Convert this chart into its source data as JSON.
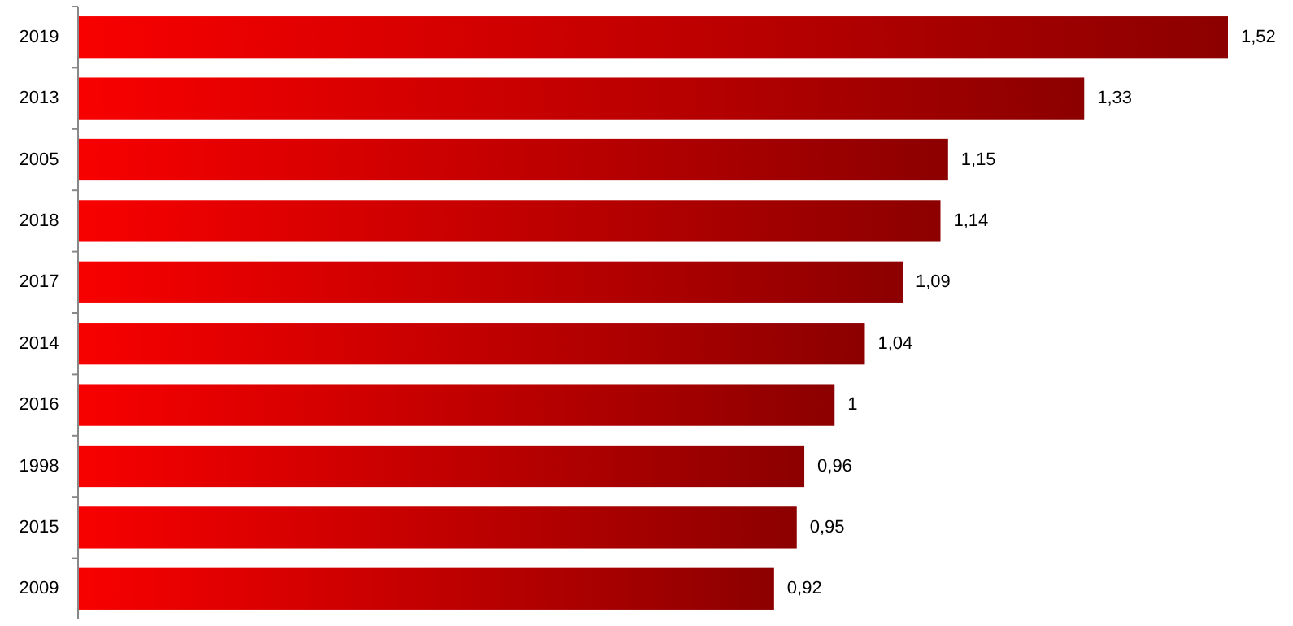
{
  "chart_data": {
    "type": "bar",
    "orientation": "horizontal",
    "categories": [
      "2019",
      "2013",
      "2005",
      "2018",
      "2017",
      "2014",
      "2016",
      "1998",
      "2015",
      "2009"
    ],
    "series": [
      {
        "color": "#c80000",
        "values": [
          1.52,
          1.33,
          1.15,
          1.14,
          1.09,
          1.04,
          1,
          0.96,
          0.95,
          0.92
        ],
        "value_labels": [
          "1,52",
          "1,33",
          "1,15",
          "1,14",
          "1,09",
          "1,04",
          "1",
          "0,96",
          "0,95",
          "0,92"
        ]
      }
    ]
  }
}
